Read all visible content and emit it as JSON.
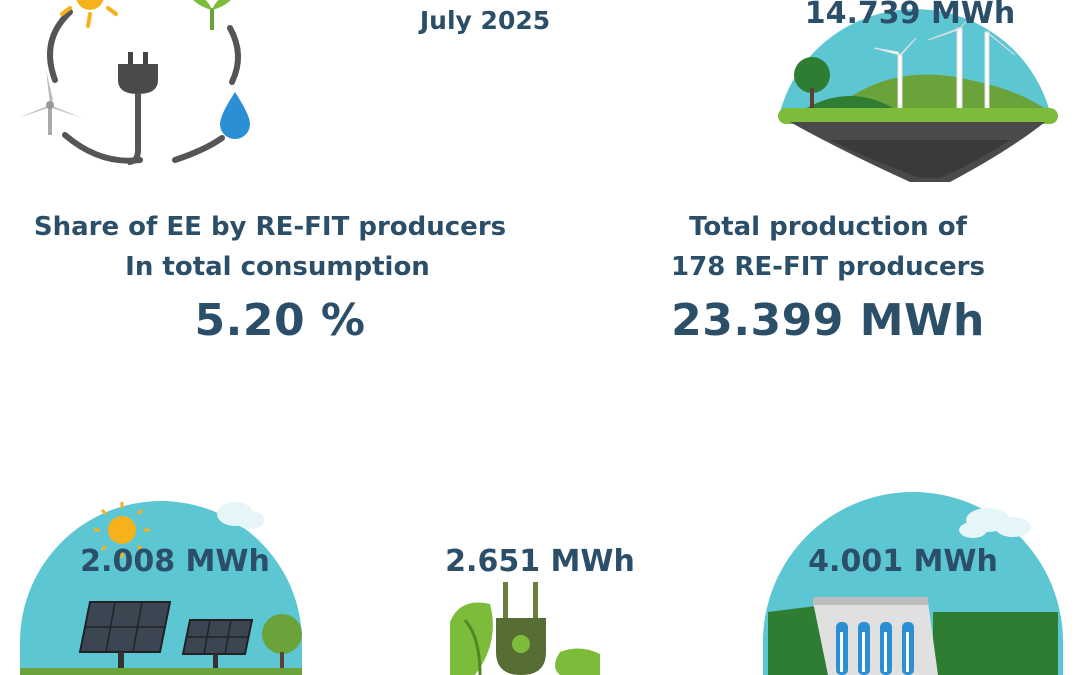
{
  "header": {
    "month": "July 2025"
  },
  "share": {
    "line1": "Share of EE by RE-FIT producers",
    "line2": "In total consumption",
    "value": "5.20 %"
  },
  "total": {
    "line1": "Total production of",
    "line2": "178 RE-FIT producers",
    "value": "23.399 MWh"
  },
  "wind": {
    "value": "14.739 MWh"
  },
  "solar": {
    "value": "2.008 MWh"
  },
  "biomass": {
    "value": "2.651 MWh"
  },
  "hydro": {
    "value": "4.001 MWh"
  },
  "colors": {
    "text": "#2b4e69",
    "sky": "#5cc6d3",
    "grass": "#6aa33a",
    "dark_green": "#2e7d32",
    "earth": "#4a4a4a"
  }
}
